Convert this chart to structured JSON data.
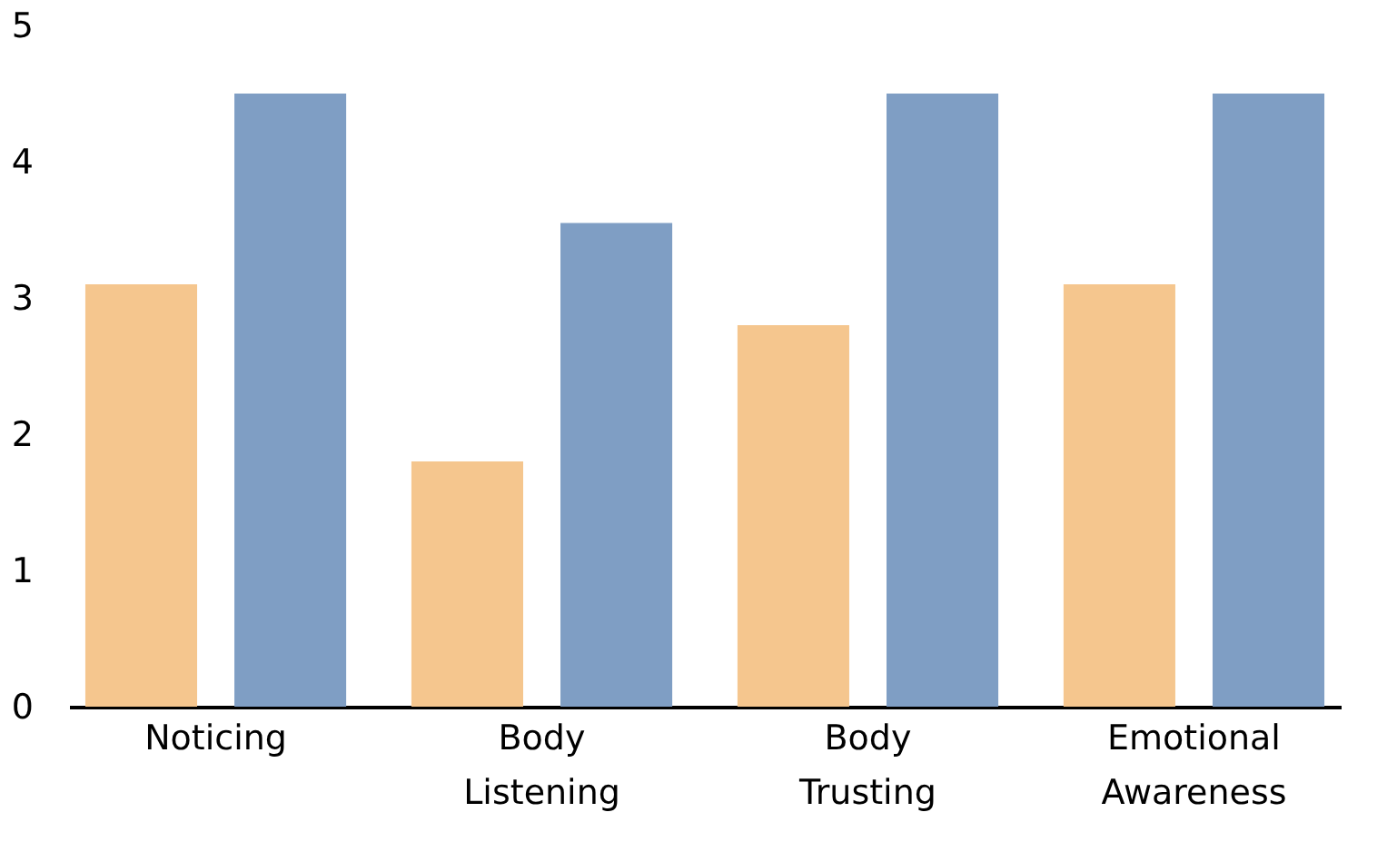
{
  "chart_data": {
    "type": "bar",
    "categories": [
      "Noticing",
      "Body Listening",
      "Body Trusting",
      "Emotional Awareness"
    ],
    "series": [
      {
        "color": "#f5c68e",
        "values": [
          3.1,
          1.8,
          2.8,
          3.1
        ]
      },
      {
        "color": "#7f9ec4",
        "values": [
          4.5,
          3.55,
          4.5,
          4.5
        ]
      }
    ],
    "ylim": [
      0,
      5
    ],
    "yticks": [
      0,
      1,
      2,
      3,
      4,
      5
    ]
  }
}
